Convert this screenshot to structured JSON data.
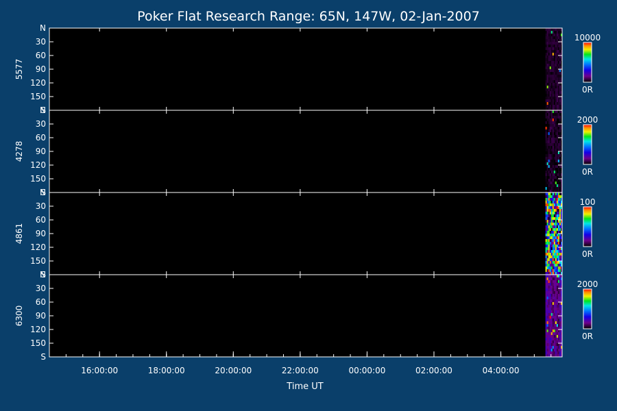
{
  "colors": {
    "background": "#0a3f6a",
    "plot_background": "#000000",
    "foreground": "#ffffff"
  },
  "chart_data": {
    "type": "heatmap",
    "title": "Poker Flat Research Range: 65N, 147W, 02-Jan-2007",
    "xlabel": "Time UT",
    "x_ticks": [
      "16:00:00",
      "18:00:00",
      "20:00:00",
      "22:00:00",
      "00:00:00",
      "02:00:00",
      "04:00:00"
    ],
    "x_range": [
      "14:30:00",
      "05:50:00"
    ],
    "data_start": "05:20:00",
    "y_ticks": [
      "N",
      "30",
      "60",
      "90",
      "120",
      "150",
      "S"
    ],
    "y_range": [
      0,
      180
    ],
    "colormap": "rainbow",
    "panels": [
      {
        "label": "5577",
        "colorbar_max": "10000",
        "colorbar_min": "0R",
        "base_level": 0.06,
        "noise": 0.06,
        "bright_probability": 0.02
      },
      {
        "label": "4278",
        "colorbar_max": "2000",
        "colorbar_min": "0R",
        "base_level": 0.05,
        "noise": 0.08,
        "bright_probability": 0.02
      },
      {
        "label": "4861",
        "colorbar_max": "100",
        "colorbar_min": "0R",
        "base_level": 0.1,
        "noise": 1.0,
        "bright_probability": 0.0
      },
      {
        "label": "6300",
        "colorbar_max": "2000",
        "colorbar_min": "0R",
        "base_level": 0.22,
        "noise": 0.12,
        "bright_probability": 0.05
      }
    ]
  }
}
